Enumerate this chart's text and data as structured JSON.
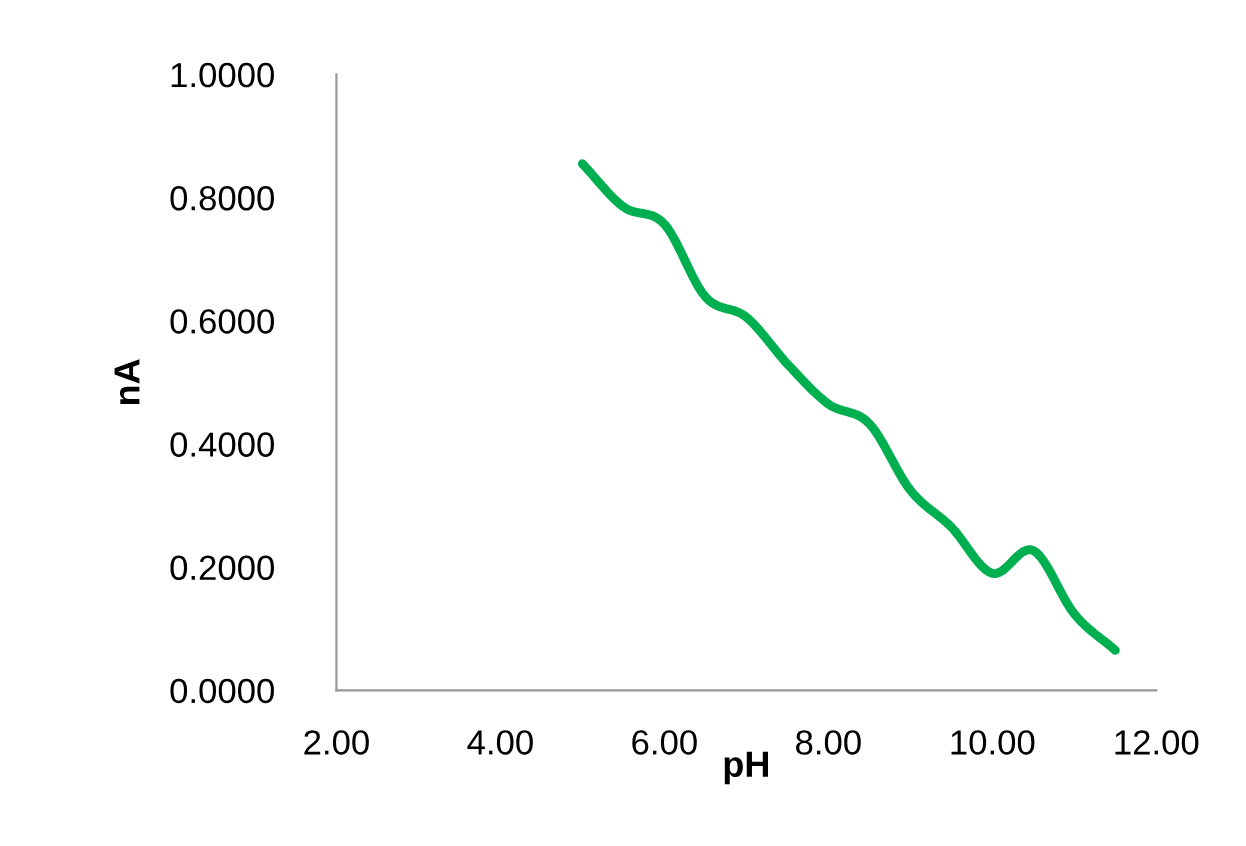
{
  "chart_data": {
    "type": "line",
    "xlabel": "pH",
    "ylabel": "nA",
    "series": [
      {
        "color": "#00b050",
        "x": [
          5.0,
          5.5,
          6.0,
          6.5,
          7.0,
          7.5,
          8.0,
          8.5,
          9.0,
          9.5,
          10.0,
          10.5,
          11.0,
          11.5
        ],
        "values": [
          0.855,
          0.785,
          0.757,
          0.639,
          0.606,
          0.53,
          0.465,
          0.433,
          0.325,
          0.265,
          0.19,
          0.227,
          0.124,
          0.065
        ]
      }
    ],
    "xlim": [
      2,
      12
    ],
    "xticks": [
      {
        "value": 2,
        "label": "2.00"
      },
      {
        "value": 4,
        "label": "4.00"
      },
      {
        "value": 6,
        "label": "6.00"
      },
      {
        "value": 8,
        "label": "8.00"
      },
      {
        "value": 10,
        "label": "10.00"
      },
      {
        "value": 12,
        "label": "12.00"
      }
    ],
    "ylim": [
      0,
      1
    ],
    "yticks": [
      {
        "value": 0,
        "label": "0.0000"
      },
      {
        "value": 0.2,
        "label": "0.2000"
      },
      {
        "value": 0.4,
        "label": "0.4000"
      },
      {
        "value": 0.6,
        "label": "0.6000"
      },
      {
        "value": 0.8,
        "label": "0.8000"
      },
      {
        "value": 1,
        "label": "1.0000"
      }
    ],
    "grid": false,
    "legend": false,
    "marker": "none",
    "line_style": "solid"
  }
}
